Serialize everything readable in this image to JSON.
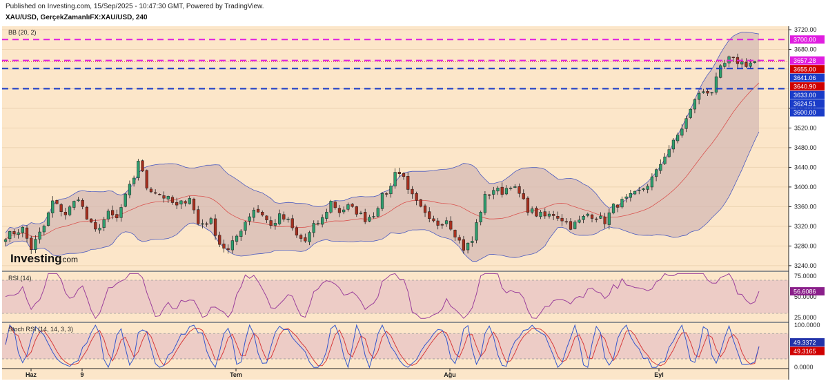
{
  "header": {
    "published": "Published on Investing.com, 15/Sep/2025 - 10:47:30 GMT, Powered by TradingView.",
    "symbol": "XAU/USD, GerçekZamanlıFX:XAU/USD, 240"
  },
  "watermark": {
    "brand": "Investing",
    "suffix": ".com"
  },
  "colors": {
    "background": "#fce6c9",
    "up_candle": "#2e9e6e",
    "down_candle": "#a6301f",
    "bb_fill": "#d6b9b4",
    "bb_band": "#4a5ac0",
    "bb_basis": "#d9534f",
    "magenta_line": "#e01ee0",
    "blue_line": "#1a3cc8",
    "rsi_line": "#9b3f9b",
    "stoch_k": "#3355cc",
    "stoch_d": "#d63a3a"
  },
  "chart_data": [
    {
      "type": "candlestick",
      "panel": "price",
      "indicator_label": "BB (20, 2)",
      "y_ticks": [
        3240,
        3280,
        3320,
        3360,
        3400,
        3440,
        3480,
        3520,
        3560,
        3600,
        3640,
        3680,
        3720
      ],
      "y_tick_labels": [
        "3240.00",
        "3280.00",
        "3320.00",
        "3360.00",
        "3400.00",
        "3440.00",
        "3480.00",
        "3520.00",
        "3560.00",
        "3600.00",
        "3640.00",
        "3680.00",
        "3720.00"
      ],
      "ylim": [
        3230,
        3727
      ],
      "x_labels": [
        "Haz",
        "9",
        "Tem",
        "Ağu",
        "Eyl"
      ],
      "num_bars": 177,
      "anchors": [
        [
          0,
          3300
        ],
        [
          4,
          3315
        ],
        [
          6,
          3275
        ],
        [
          9,
          3320
        ],
        [
          11,
          3370
        ],
        [
          14,
          3345
        ],
        [
          17,
          3380
        ],
        [
          19,
          3335
        ],
        [
          21,
          3310
        ],
        [
          24,
          3345
        ],
        [
          26,
          3335
        ],
        [
          28,
          3380
        ],
        [
          30,
          3420
        ],
        [
          31,
          3455
        ],
        [
          33,
          3400
        ],
        [
          36,
          3385
        ],
        [
          38,
          3375
        ],
        [
          40,
          3360
        ],
        [
          43,
          3380
        ],
        [
          45,
          3325
        ],
        [
          48,
          3330
        ],
        [
          50,
          3285
        ],
        [
          52,
          3270
        ],
        [
          54,
          3300
        ],
        [
          56,
          3330
        ],
        [
          58,
          3355
        ],
        [
          60,
          3345
        ],
        [
          62,
          3320
        ],
        [
          64,
          3340
        ],
        [
          66,
          3330
        ],
        [
          68,
          3300
        ],
        [
          70,
          3290
        ],
        [
          72,
          3320
        ],
        [
          74,
          3335
        ],
        [
          76,
          3370
        ],
        [
          78,
          3350
        ],
        [
          80,
          3360
        ],
        [
          82,
          3350
        ],
        [
          84,
          3335
        ],
        [
          86,
          3345
        ],
        [
          88,
          3380
        ],
        [
          90,
          3400
        ],
        [
          91,
          3435
        ],
        [
          93,
          3420
        ],
        [
          95,
          3380
        ],
        [
          97,
          3355
        ],
        [
          99,
          3330
        ],
        [
          101,
          3325
        ],
        [
          103,
          3335
        ],
        [
          105,
          3305
        ],
        [
          107,
          3275
        ],
        [
          109,
          3290
        ],
        [
          110,
          3325
        ],
        [
          112,
          3380
        ],
        [
          114,
          3395
        ],
        [
          116,
          3390
        ],
        [
          118,
          3405
        ],
        [
          120,
          3385
        ],
        [
          122,
          3355
        ],
        [
          124,
          3345
        ],
        [
          126,
          3340
        ],
        [
          128,
          3345
        ],
        [
          130,
          3335
        ],
        [
          132,
          3320
        ],
        [
          134,
          3330
        ],
        [
          136,
          3345
        ],
        [
          138,
          3340
        ],
        [
          140,
          3330
        ],
        [
          142,
          3360
        ],
        [
          144,
          3370
        ],
        [
          146,
          3380
        ],
        [
          148,
          3390
        ],
        [
          150,
          3405
        ],
        [
          152,
          3430
        ],
        [
          154,
          3465
        ],
        [
          156,
          3490
        ],
        [
          158,
          3520
        ],
        [
          160,
          3555
        ],
        [
          161,
          3580
        ],
        [
          163,
          3595
        ],
        [
          165,
          3595
        ],
        [
          167,
          3640
        ],
        [
          169,
          3660
        ],
        [
          171,
          3655
        ],
        [
          173,
          3650
        ],
        [
          175,
          3655
        ],
        [
          177,
          3652
        ]
      ],
      "bollinger_bands": {
        "period": 20,
        "stddev": 2
      },
      "horizontal_levels": [
        {
          "value": 3700.0,
          "label": "3700.00",
          "style": "dashed",
          "color": "magenta"
        },
        {
          "value": 3657.28,
          "label": "3657.28",
          "style": "dashed",
          "color": "magenta"
        },
        {
          "value": 3641.06,
          "label": "3641.06",
          "style": "dashed",
          "color": "blue"
        },
        {
          "value": 3600.0,
          "label": "3600.00",
          "style": "dashed",
          "color": "blue"
        }
      ],
      "price_tags": [
        {
          "value": 3700.0,
          "label": "3700.00",
          "bg": "#e01ee0",
          "fg": "#ffffff"
        },
        {
          "value": 3657.28,
          "label": "3657.28",
          "bg": "#e01ee0",
          "fg": "#ffffff"
        },
        {
          "value": 3655.0,
          "label": "3655.00",
          "bg": "#d00000",
          "fg": "#ffffff"
        },
        {
          "value": 3641.06,
          "label": "3641.06",
          "bg": "#1a3cc8",
          "fg": "#ffffff"
        },
        {
          "value": 3640.9,
          "label": "3640.90",
          "bg": "#d00000",
          "fg": "#ffffff"
        },
        {
          "value": 3633.0,
          "label": "3633.00",
          "bg": "#1a3cc8",
          "fg": "#ffffff"
        },
        {
          "value": 3624.51,
          "label": "3624.51",
          "bg": "#1a3cc8",
          "fg": "#ffffff"
        },
        {
          "value": 3600.0,
          "label": "3600.00",
          "bg": "#1a3cc8",
          "fg": "#ffffff"
        }
      ]
    },
    {
      "type": "line",
      "panel": "rsi",
      "indicator_label": "RSI (14)",
      "ylim": [
        20,
        80
      ],
      "y_tick_labels": [
        "75.0000",
        "50.0000",
        "25.0000"
      ],
      "y_ticks": [
        75,
        50,
        25
      ],
      "band": [
        30,
        70
      ],
      "last_value": 56.6086,
      "last_label": "56.6086"
    },
    {
      "type": "line",
      "panel": "stoch_rsi",
      "indicator_label": "Stoch RSI (14, 14, 3, 3)",
      "ylim": [
        -3,
        105
      ],
      "y_tick_labels": [
        "100.0000",
        "0.0000"
      ],
      "y_ticks": [
        100,
        0
      ],
      "band": [
        20,
        80
      ],
      "series": [
        {
          "name": "K",
          "last_value": 49.3372,
          "last_label": "49.3372"
        },
        {
          "name": "D",
          "last_value": 49.3165,
          "last_label": "49.3165"
        }
      ]
    }
  ]
}
